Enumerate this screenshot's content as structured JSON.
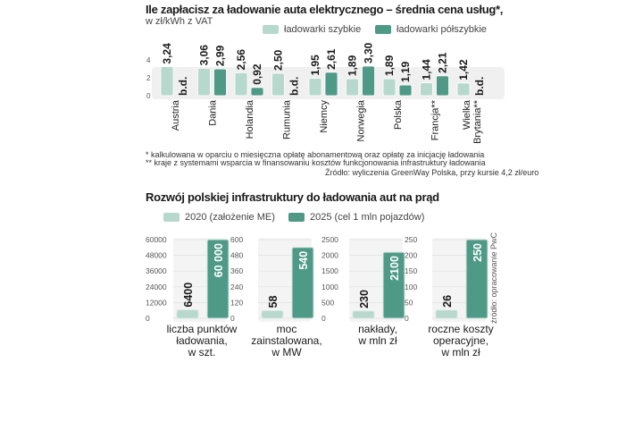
{
  "colors": {
    "light": "#b7d8cc",
    "dark": "#4f9a87",
    "bg_band": "#f0f0f0",
    "grid": "#e2e2e2",
    "text": "#222222"
  },
  "chart_data": [
    {
      "type": "bar",
      "title": "Ile zapłacisz za ładowanie auta elektrycznego – średnia cena usług*,",
      "subtitle": "w zł/kWh z VAT",
      "ylim": [
        0,
        4
      ],
      "yticks": [
        "0",
        "2",
        "4"
      ],
      "legend": [
        "ładowarki szybkie",
        "ładowarki półszybkie"
      ],
      "legend_position": "top-right",
      "categories": [
        "Austria",
        "Dania",
        "Holandia",
        "Rumunia",
        "Niemcy",
        "Norwegia",
        "Polska",
        "Francja**",
        "Wielka Brytania**"
      ],
      "series": [
        {
          "name": "ładowarki szybkie",
          "values": [
            3.24,
            3.06,
            2.56,
            2.5,
            1.95,
            1.89,
            1.89,
            1.44,
            1.42
          ],
          "labels": [
            "3,24",
            "3,06",
            "2,56",
            "2,50",
            "1,95",
            "1,89",
            "1,89",
            "1,44",
            "1,42"
          ]
        },
        {
          "name": "ładowarki półszybkie",
          "values": [
            null,
            2.99,
            0.92,
            null,
            2.61,
            3.3,
            1.19,
            2.21,
            null
          ],
          "labels": [
            "b.d.",
            "2,99",
            "0,92",
            "b.d.",
            "2,61",
            "3,30",
            "1,19",
            "2,21",
            "b.d."
          ]
        }
      ],
      "notes": [
        "* kalkulowana w oparciu o miesięczna opłatę abonamentową oraz opłatę za inicjację ładowania",
        "** kraje z systemami wsparcia w finansowaniu kosztów funkcjonowania infrastruktury ładowania"
      ],
      "source": "Źródło: wyliczenia GreenWay Polska, przy kursie 4,2 zł/euro"
    },
    {
      "type": "bar",
      "title": "Rozwój polskiej infrastruktury do ładowania aut na prąd",
      "legend": [
        "2020 (założenie ME)",
        "2025 (cel 1 mln pojazdów)"
      ],
      "legend_position": "top-left",
      "source": "źródło: opracowanie PwC",
      "panels": [
        {
          "category": "liczba punktów ładowania, w szt.",
          "label_lines": [
            "liczba punktów",
            "ładowania,",
            "w szt."
          ],
          "ylim": [
            0,
            60000
          ],
          "yticks": [
            "0",
            "12000",
            "24000",
            "36000",
            "48000",
            "60000"
          ],
          "values": [
            6400,
            60000
          ],
          "labels": [
            "6400",
            "60 000"
          ]
        },
        {
          "category": "moc zainstalowana, w MW",
          "label_lines": [
            "moc",
            "zainstalowana,",
            "w MW"
          ],
          "ylim": [
            0,
            600
          ],
          "yticks": [
            "0",
            "120",
            "240",
            "360",
            "480",
            "600"
          ],
          "values": [
            58,
            540
          ],
          "labels": [
            "58",
            "540"
          ]
        },
        {
          "category": "nakłady, w mln zł",
          "label_lines": [
            "nakłady,",
            "w mln zł"
          ],
          "ylim": [
            0,
            2500
          ],
          "yticks": [
            "0",
            "500",
            "1000",
            "1500",
            "2000",
            "2500"
          ],
          "values": [
            230,
            2100
          ],
          "labels": [
            "230",
            "2100"
          ]
        },
        {
          "category": "roczne koszty operacyjne, w mln zł",
          "label_lines": [
            "roczne koszty",
            "operacyjne,",
            "w mln zł"
          ],
          "ylim": [
            0,
            250
          ],
          "yticks": [
            "0",
            "50",
            "100",
            "150",
            "200",
            "250"
          ],
          "values": [
            26,
            250
          ],
          "labels": [
            "26",
            "250"
          ]
        }
      ]
    }
  ]
}
